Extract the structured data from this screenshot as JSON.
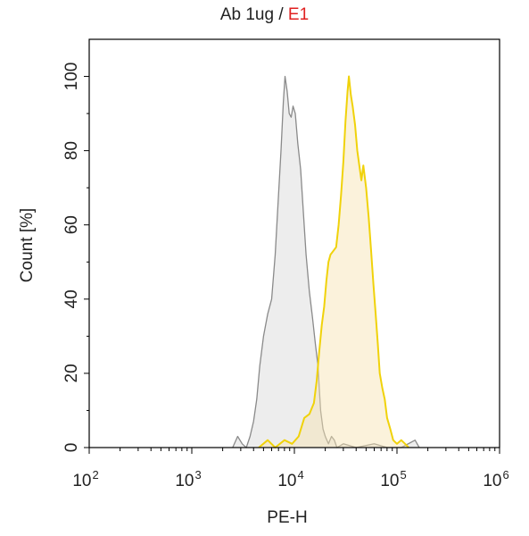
{
  "chart_data": {
    "type": "area",
    "title_prefix": "Ab 1ug / ",
    "title_highlight": "E1",
    "title_highlight_color": "#e02020",
    "xlabel": "PE-H",
    "ylabel": "Count [%]",
    "x_scale": "log",
    "xlim": [
      100,
      1000000
    ],
    "ylim": [
      0,
      110
    ],
    "x_ticks": [
      {
        "value": 100,
        "base": "10",
        "exp": "2"
      },
      {
        "value": 1000,
        "base": "10",
        "exp": "3"
      },
      {
        "value": 10000,
        "base": "10",
        "exp": "4"
      },
      {
        "value": 100000,
        "base": "10",
        "exp": "5"
      },
      {
        "value": 1000000,
        "base": "10",
        "exp": "6"
      }
    ],
    "y_ticks": [
      0,
      20,
      40,
      60,
      80,
      100
    ],
    "grid": false,
    "series": [
      {
        "stroke": "#8a8a8a",
        "fill": "#d8d8d8",
        "points": [
          [
            2500,
            0
          ],
          [
            2800,
            3
          ],
          [
            3100,
            1
          ],
          [
            3400,
            0
          ],
          [
            3700,
            3
          ],
          [
            4000,
            7
          ],
          [
            4300,
            13
          ],
          [
            4600,
            22
          ],
          [
            5000,
            30
          ],
          [
            5500,
            36
          ],
          [
            6000,
            40
          ],
          [
            6500,
            52
          ],
          [
            7000,
            68
          ],
          [
            7400,
            80
          ],
          [
            7800,
            93
          ],
          [
            8100,
            100
          ],
          [
            8500,
            96
          ],
          [
            8900,
            90
          ],
          [
            9300,
            89
          ],
          [
            9700,
            92
          ],
          [
            10200,
            90
          ],
          [
            10800,
            82
          ],
          [
            11500,
            75
          ],
          [
            12200,
            64
          ],
          [
            13000,
            52
          ],
          [
            14000,
            42
          ],
          [
            15000,
            35
          ],
          [
            16000,
            28
          ],
          [
            17000,
            22
          ],
          [
            17500,
            16
          ],
          [
            18000,
            10
          ],
          [
            19000,
            5
          ],
          [
            20000,
            3
          ],
          [
            21500,
            1
          ],
          [
            23000,
            3
          ],
          [
            24500,
            2
          ],
          [
            26000,
            0
          ],
          [
            30000,
            1
          ],
          [
            40000,
            0
          ],
          [
            60000,
            1
          ],
          [
            80000,
            0
          ],
          [
            110000,
            0
          ],
          [
            150000,
            2
          ],
          [
            165000,
            0
          ]
        ]
      },
      {
        "stroke": "#f0d20a",
        "fill": "#f7e2b0",
        "points": [
          [
            4500,
            0
          ],
          [
            5500,
            2
          ],
          [
            6500,
            0
          ],
          [
            8000,
            2
          ],
          [
            9500,
            1
          ],
          [
            11000,
            3
          ],
          [
            12500,
            8
          ],
          [
            14000,
            9
          ],
          [
            15500,
            12
          ],
          [
            16500,
            18
          ],
          [
            17500,
            26
          ],
          [
            18500,
            33
          ],
          [
            19500,
            38
          ],
          [
            20500,
            45
          ],
          [
            21500,
            50
          ],
          [
            22500,
            52
          ],
          [
            24000,
            53
          ],
          [
            25500,
            54
          ],
          [
            27000,
            60
          ],
          [
            28500,
            68
          ],
          [
            30000,
            77
          ],
          [
            31500,
            88
          ],
          [
            33000,
            96
          ],
          [
            34000,
            100
          ],
          [
            35500,
            95
          ],
          [
            37000,
            92
          ],
          [
            39000,
            87
          ],
          [
            41000,
            80
          ],
          [
            43000,
            76
          ],
          [
            45000,
            72
          ],
          [
            47000,
            76
          ],
          [
            50000,
            70
          ],
          [
            53000,
            62
          ],
          [
            56000,
            53
          ],
          [
            59000,
            44
          ],
          [
            62000,
            36
          ],
          [
            65000,
            28
          ],
          [
            68000,
            20
          ],
          [
            72000,
            16
          ],
          [
            76000,
            13
          ],
          [
            80000,
            8
          ],
          [
            86000,
            5
          ],
          [
            92000,
            2
          ],
          [
            100000,
            1
          ],
          [
            110000,
            2
          ],
          [
            120000,
            1
          ],
          [
            130000,
            0
          ]
        ]
      }
    ]
  }
}
